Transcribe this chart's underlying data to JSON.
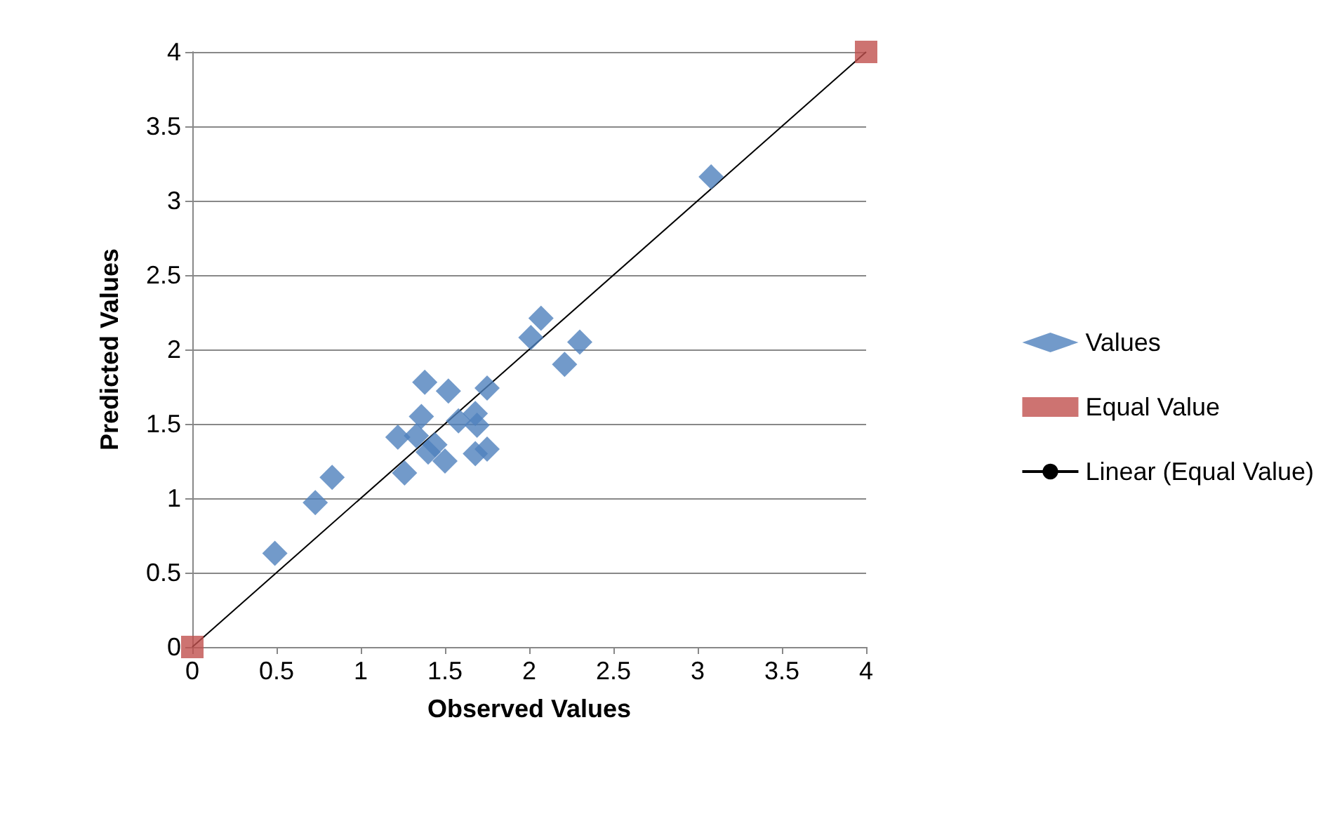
{
  "chart_data": {
    "type": "scatter",
    "xlabel": "Observed Values",
    "ylabel": "Predicted Values",
    "xlim": [
      0,
      4
    ],
    "ylim": [
      0,
      4
    ],
    "xticks": [
      0,
      0.5,
      1,
      1.5,
      2,
      2.5,
      3,
      3.5,
      4
    ],
    "yticks": [
      0,
      0.5,
      1,
      1.5,
      2,
      2.5,
      3,
      3.5,
      4
    ],
    "grid": "y",
    "legend": "right",
    "series": [
      {
        "name": "Values",
        "color": "#4f81bd",
        "marker": "diamond",
        "x": [
          0.49,
          0.73,
          0.83,
          1.22,
          1.26,
          1.38,
          1.36,
          1.33,
          1.44,
          1.4,
          1.5,
          1.52,
          1.58,
          1.68,
          1.69,
          1.75,
          1.68,
          1.75,
          2.01,
          2.07,
          2.21,
          2.3,
          3.08
        ],
        "values": [
          0.63,
          0.97,
          1.14,
          1.41,
          1.17,
          1.78,
          1.55,
          1.42,
          1.36,
          1.31,
          1.25,
          1.72,
          1.52,
          1.57,
          1.49,
          1.74,
          1.3,
          1.33,
          2.08,
          2.21,
          1.9,
          2.05,
          3.16
        ]
      },
      {
        "name": "Equal Value",
        "color": "#c0504d",
        "marker": "square",
        "x": [
          0,
          4
        ],
        "values": [
          0,
          4
        ]
      },
      {
        "name": "Linear (Equal Value)",
        "type": "line",
        "color": "#000000",
        "marker": "none",
        "line_style": "solid",
        "x": [
          0,
          4
        ],
        "values": [
          0,
          4
        ]
      }
    ]
  }
}
